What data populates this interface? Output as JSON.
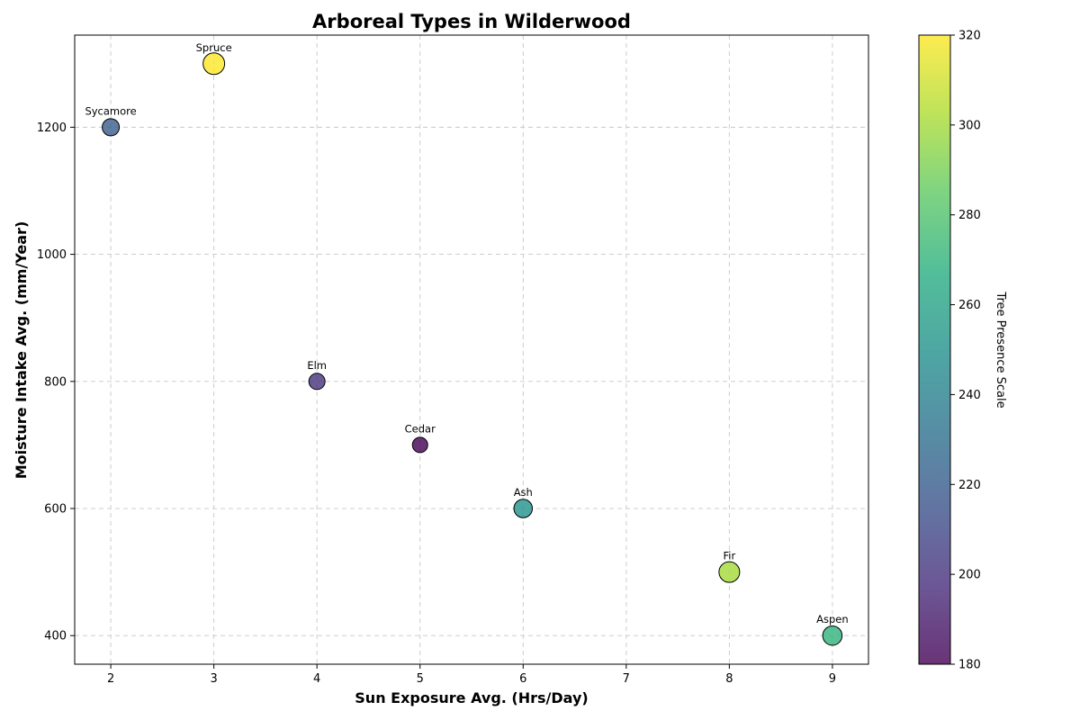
{
  "chart_data": {
    "type": "scatter",
    "title": "Arboreal Types in Wilderwood",
    "xlabel": "Sun Exposure Avg. (Hrs/Day)",
    "ylabel": "Moisture Intake Avg. (mm/Year)",
    "xlim": [
      1.65,
      9.35
    ],
    "ylim": [
      355,
      1345
    ],
    "xticks": [
      2,
      3,
      4,
      5,
      6,
      7,
      8,
      9
    ],
    "yticks": [
      400,
      600,
      800,
      1000,
      1200
    ],
    "grid": true,
    "colormap": "viridis",
    "points": [
      {
        "label": "Sycamore",
        "x": 2,
        "y": 1200,
        "presence": 220
      },
      {
        "label": "Spruce",
        "x": 3,
        "y": 1300,
        "presence": 320
      },
      {
        "label": "Elm",
        "x": 4,
        "y": 800,
        "presence": 200
      },
      {
        "label": "Cedar",
        "x": 5,
        "y": 700,
        "presence": 180
      },
      {
        "label": "Ash",
        "x": 6,
        "y": 600,
        "presence": 250
      },
      {
        "label": "Fir",
        "x": 8,
        "y": 500,
        "presence": 300
      },
      {
        "label": "Aspen",
        "x": 9,
        "y": 400,
        "presence": 270
      }
    ],
    "colorbar": {
      "label": "Tree Presence Scale",
      "range": [
        180,
        320
      ],
      "ticks": [
        180,
        200,
        220,
        240,
        260,
        280,
        300,
        320
      ]
    }
  }
}
